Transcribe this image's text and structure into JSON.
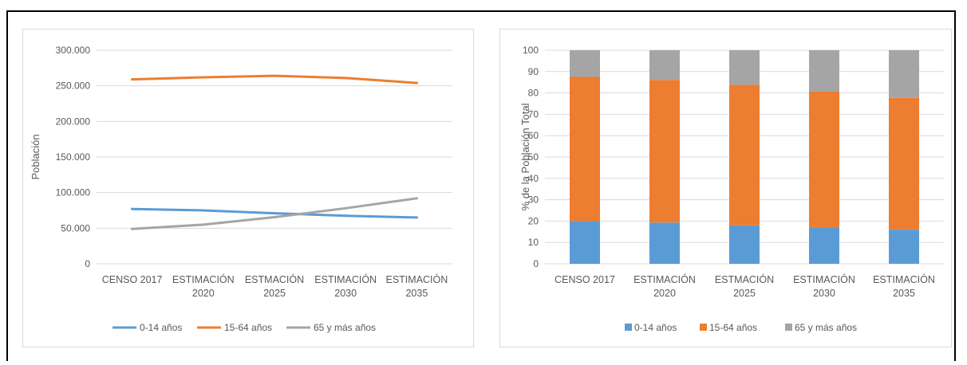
{
  "chart_data": [
    {
      "type": "line",
      "ylabel": "Población",
      "xlabel": "",
      "categories": [
        [
          "CENSO 2017"
        ],
        [
          "ESTIMACIÓN",
          "2020"
        ],
        [
          "ESTMACIÓN",
          "2025"
        ],
        [
          "ESTIMACIÓN",
          "2030"
        ],
        [
          "ESTIMACIÓN",
          "2035"
        ]
      ],
      "ylim": [
        0,
        300000
      ],
      "yticks": [
        0,
        50000,
        100000,
        150000,
        200000,
        250000,
        300000
      ],
      "ytick_labels": [
        "0",
        "50.000",
        "100.000",
        "150.000",
        "200.000",
        "250.000",
        "300.000"
      ],
      "grid": true,
      "legend_position": "bottom",
      "series": [
        {
          "name": "0-14 años",
          "color": "#5b9bd5",
          "values": [
            77000,
            75000,
            71000,
            67500,
            65000
          ]
        },
        {
          "name": "15-64 años",
          "color": "#ed7d31",
          "values": [
            259000,
            262000,
            264000,
            261000,
            254000
          ]
        },
        {
          "name": "65 y más años",
          "color": "#a5a5a5",
          "values": [
            49000,
            55000,
            65500,
            78000,
            92000
          ]
        }
      ]
    },
    {
      "type": "bar",
      "stacked": true,
      "ylabel": "% de la Población Total",
      "xlabel": "",
      "categories": [
        [
          "CENSO 2017"
        ],
        [
          "ESTIMACIÓN",
          "2020"
        ],
        [
          "ESTMACIÓN",
          "2025"
        ],
        [
          "ESTIMACIÓN",
          "2030"
        ],
        [
          "ESTIMACIÓN",
          "2035"
        ]
      ],
      "ylim": [
        0,
        100
      ],
      "yticks": [
        0,
        10,
        20,
        30,
        40,
        50,
        60,
        70,
        80,
        90,
        100
      ],
      "ytick_labels": [
        "0",
        "10",
        "20",
        "30",
        "40",
        "50",
        "60",
        "70",
        "80",
        "90",
        "100"
      ],
      "grid": true,
      "legend_position": "bottom",
      "series": [
        {
          "name": "0-14 años",
          "color": "#5b9bd5",
          "values": [
            20,
            19.3,
            18,
            16.8,
            16
          ]
        },
        {
          "name": "15-64 años",
          "color": "#ed7d31",
          "values": [
            67.5,
            66.8,
            65.8,
            63.8,
            61.7
          ]
        },
        {
          "name": "65 y más años",
          "color": "#a5a5a5",
          "values": [
            12.5,
            13.9,
            16.2,
            19.4,
            22.3
          ]
        }
      ]
    }
  ]
}
